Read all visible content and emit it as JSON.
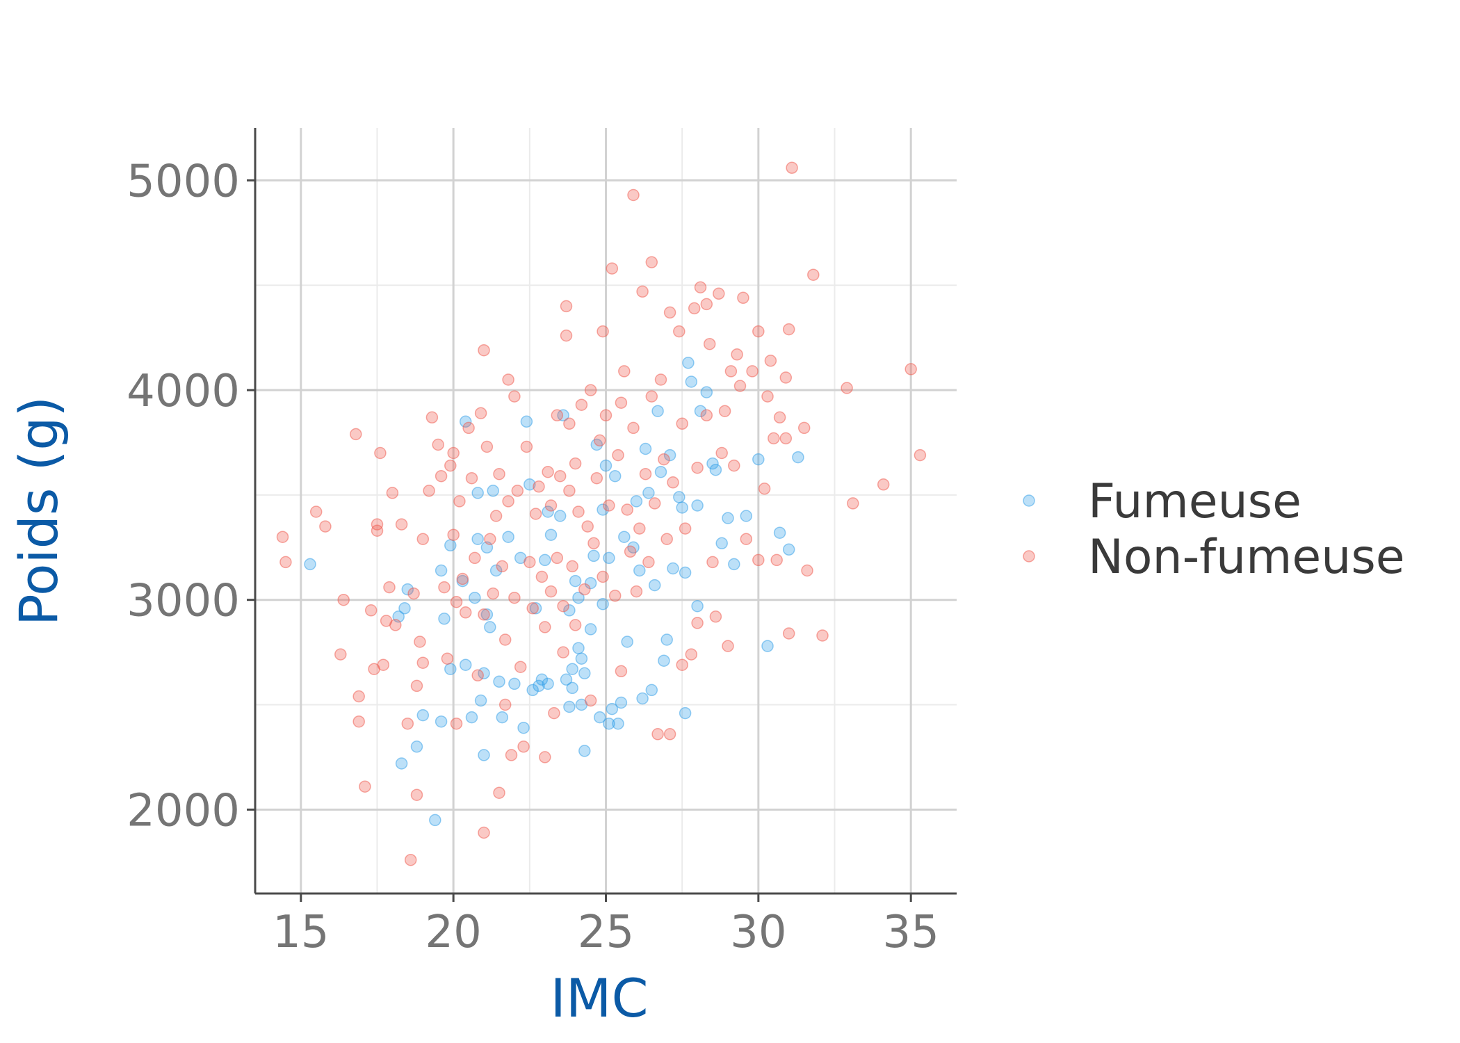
{
  "chart_data": {
    "type": "scatter",
    "xlabel": "IMC",
    "ylabel": "Poids (g)",
    "xlim": [
      13.5,
      36.5
    ],
    "ylim": [
      1600,
      5250
    ],
    "x_ticks": [
      15,
      20,
      25,
      30,
      35
    ],
    "x_minor_ticks": [
      17.5,
      22.5,
      27.5,
      32.5
    ],
    "y_ticks": [
      2000,
      3000,
      4000,
      5000
    ],
    "y_minor_ticks": [
      2500,
      3500,
      4500
    ],
    "grid": true,
    "legend_position": "right",
    "series": [
      {
        "name": "Fumeuse",
        "color": "#2f9ee8",
        "points": [
          [
            15.3,
            3170
          ],
          [
            18.2,
            2920
          ],
          [
            18.5,
            3050
          ],
          [
            18.4,
            2960
          ],
          [
            18.8,
            2300
          ],
          [
            18.3,
            2220
          ],
          [
            19.0,
            2450
          ],
          [
            19.4,
            1950
          ],
          [
            19.6,
            2420
          ],
          [
            19.6,
            3140
          ],
          [
            19.7,
            2910
          ],
          [
            19.9,
            3260
          ],
          [
            19.9,
            2670
          ],
          [
            20.3,
            3090
          ],
          [
            20.4,
            3850
          ],
          [
            20.4,
            2690
          ],
          [
            20.6,
            2440
          ],
          [
            20.7,
            3010
          ],
          [
            20.8,
            3290
          ],
          [
            20.8,
            3510
          ],
          [
            20.9,
            2520
          ],
          [
            21.0,
            2260
          ],
          [
            21.0,
            2650
          ],
          [
            21.1,
            2930
          ],
          [
            21.1,
            3250
          ],
          [
            21.2,
            2870
          ],
          [
            21.3,
            3520
          ],
          [
            21.4,
            3140
          ],
          [
            21.5,
            2610
          ],
          [
            21.6,
            2440
          ],
          [
            21.8,
            3300
          ],
          [
            22.0,
            2600
          ],
          [
            22.2,
            3200
          ],
          [
            22.3,
            2390
          ],
          [
            22.4,
            3850
          ],
          [
            22.5,
            3550
          ],
          [
            22.6,
            2570
          ],
          [
            22.7,
            2960
          ],
          [
            22.8,
            2590
          ],
          [
            22.9,
            2620
          ],
          [
            23.0,
            3190
          ],
          [
            23.1,
            3420
          ],
          [
            23.1,
            2600
          ],
          [
            23.2,
            3310
          ],
          [
            23.5,
            3400
          ],
          [
            23.6,
            3880
          ],
          [
            23.7,
            2620
          ],
          [
            23.8,
            2950
          ],
          [
            23.8,
            2490
          ],
          [
            23.9,
            2580
          ],
          [
            23.9,
            2670
          ],
          [
            24.0,
            3090
          ],
          [
            24.1,
            3010
          ],
          [
            24.1,
            2770
          ],
          [
            24.2,
            2500
          ],
          [
            24.2,
            2720
          ],
          [
            24.3,
            2650
          ],
          [
            24.3,
            2280
          ],
          [
            24.5,
            3080
          ],
          [
            24.5,
            2860
          ],
          [
            24.6,
            3210
          ],
          [
            24.7,
            3740
          ],
          [
            24.8,
            2440
          ],
          [
            24.9,
            3430
          ],
          [
            24.9,
            2980
          ],
          [
            25.0,
            3640
          ],
          [
            25.1,
            3200
          ],
          [
            25.1,
            2410
          ],
          [
            25.2,
            2480
          ],
          [
            25.3,
            3590
          ],
          [
            25.4,
            2410
          ],
          [
            25.5,
            2510
          ],
          [
            25.6,
            3300
          ],
          [
            25.7,
            2800
          ],
          [
            25.9,
            3250
          ],
          [
            26.0,
            3470
          ],
          [
            26.1,
            3140
          ],
          [
            26.2,
            2530
          ],
          [
            26.3,
            3720
          ],
          [
            26.4,
            3510
          ],
          [
            26.5,
            2570
          ],
          [
            26.6,
            3070
          ],
          [
            26.7,
            3900
          ],
          [
            26.8,
            3610
          ],
          [
            26.9,
            2710
          ],
          [
            27.0,
            2810
          ],
          [
            27.1,
            3690
          ],
          [
            27.2,
            3150
          ],
          [
            27.4,
            3490
          ],
          [
            27.5,
            3440
          ],
          [
            27.6,
            2460
          ],
          [
            27.6,
            3130
          ],
          [
            27.7,
            4130
          ],
          [
            27.8,
            4040
          ],
          [
            28.0,
            3450
          ],
          [
            28.0,
            2970
          ],
          [
            28.1,
            3900
          ],
          [
            28.3,
            3990
          ],
          [
            28.5,
            3650
          ],
          [
            28.6,
            3620
          ],
          [
            28.8,
            3270
          ],
          [
            29.0,
            3390
          ],
          [
            29.2,
            3170
          ],
          [
            29.6,
            3400
          ],
          [
            30.0,
            3670
          ],
          [
            30.3,
            2780
          ],
          [
            30.7,
            3320
          ],
          [
            31.0,
            3240
          ],
          [
            31.3,
            3680
          ]
        ]
      },
      {
        "name": "Non-fumeuse",
        "color": "#f0584c",
        "points": [
          [
            14.4,
            3300
          ],
          [
            14.5,
            3180
          ],
          [
            15.5,
            3420
          ],
          [
            15.8,
            3350
          ],
          [
            16.3,
            2740
          ],
          [
            16.4,
            3000
          ],
          [
            16.8,
            3790
          ],
          [
            16.9,
            2540
          ],
          [
            16.9,
            2420
          ],
          [
            17.1,
            2110
          ],
          [
            17.3,
            2950
          ],
          [
            17.4,
            2670
          ],
          [
            17.5,
            3330
          ],
          [
            17.5,
            3360
          ],
          [
            17.6,
            3700
          ],
          [
            17.7,
            2690
          ],
          [
            17.8,
            2900
          ],
          [
            17.9,
            3060
          ],
          [
            18.0,
            3510
          ],
          [
            18.1,
            2880
          ],
          [
            18.3,
            3360
          ],
          [
            18.5,
            2410
          ],
          [
            18.6,
            1760
          ],
          [
            18.7,
            3030
          ],
          [
            18.8,
            2070
          ],
          [
            18.8,
            2590
          ],
          [
            18.9,
            2800
          ],
          [
            19.0,
            2700
          ],
          [
            19.0,
            3290
          ],
          [
            19.2,
            3520
          ],
          [
            19.3,
            3870
          ],
          [
            19.5,
            3740
          ],
          [
            19.6,
            3590
          ],
          [
            19.7,
            3060
          ],
          [
            19.8,
            2720
          ],
          [
            19.9,
            3640
          ],
          [
            20.0,
            3310
          ],
          [
            20.0,
            3700
          ],
          [
            20.1,
            2990
          ],
          [
            20.1,
            2410
          ],
          [
            20.2,
            3470
          ],
          [
            20.3,
            3100
          ],
          [
            20.4,
            2940
          ],
          [
            20.5,
            3820
          ],
          [
            20.6,
            3580
          ],
          [
            20.7,
            3200
          ],
          [
            20.8,
            2640
          ],
          [
            20.9,
            3890
          ],
          [
            21.0,
            4190
          ],
          [
            21.0,
            2930
          ],
          [
            21.0,
            1890
          ],
          [
            21.1,
            3730
          ],
          [
            21.2,
            3290
          ],
          [
            21.3,
            3030
          ],
          [
            21.4,
            3400
          ],
          [
            21.5,
            2080
          ],
          [
            21.5,
            3600
          ],
          [
            21.6,
            3160
          ],
          [
            21.7,
            2500
          ],
          [
            21.7,
            2810
          ],
          [
            21.8,
            4050
          ],
          [
            21.8,
            3470
          ],
          [
            21.9,
            2260
          ],
          [
            22.0,
            3970
          ],
          [
            22.0,
            3010
          ],
          [
            22.1,
            3520
          ],
          [
            22.2,
            2680
          ],
          [
            22.3,
            2300
          ],
          [
            22.4,
            3730
          ],
          [
            22.5,
            3180
          ],
          [
            22.6,
            2960
          ],
          [
            22.7,
            3410
          ],
          [
            22.8,
            3540
          ],
          [
            22.9,
            3110
          ],
          [
            23.0,
            2250
          ],
          [
            23.0,
            2870
          ],
          [
            23.1,
            3610
          ],
          [
            23.2,
            3450
          ],
          [
            23.2,
            3040
          ],
          [
            23.3,
            2460
          ],
          [
            23.4,
            3880
          ],
          [
            23.4,
            3200
          ],
          [
            23.5,
            3590
          ],
          [
            23.6,
            2970
          ],
          [
            23.6,
            2750
          ],
          [
            23.7,
            4400
          ],
          [
            23.7,
            4260
          ],
          [
            23.8,
            3840
          ],
          [
            23.8,
            3520
          ],
          [
            23.9,
            3160
          ],
          [
            24.0,
            3650
          ],
          [
            24.0,
            2880
          ],
          [
            24.1,
            3420
          ],
          [
            24.2,
            3930
          ],
          [
            24.3,
            3050
          ],
          [
            24.4,
            3350
          ],
          [
            24.5,
            4000
          ],
          [
            24.5,
            2520
          ],
          [
            24.6,
            3270
          ],
          [
            24.7,
            3580
          ],
          [
            24.8,
            3760
          ],
          [
            24.9,
            4280
          ],
          [
            24.9,
            3110
          ],
          [
            25.0,
            3880
          ],
          [
            25.1,
            3450
          ],
          [
            25.2,
            4580
          ],
          [
            25.3,
            3020
          ],
          [
            25.4,
            3690
          ],
          [
            25.5,
            3940
          ],
          [
            25.5,
            2660
          ],
          [
            25.6,
            4090
          ],
          [
            25.7,
            3430
          ],
          [
            25.8,
            3230
          ],
          [
            25.9,
            4930
          ],
          [
            25.9,
            3820
          ],
          [
            26.0,
            3040
          ],
          [
            26.1,
            3340
          ],
          [
            26.2,
            4470
          ],
          [
            26.3,
            3600
          ],
          [
            26.4,
            3180
          ],
          [
            26.5,
            4610
          ],
          [
            26.5,
            3970
          ],
          [
            26.6,
            3460
          ],
          [
            26.7,
            2360
          ],
          [
            26.8,
            4050
          ],
          [
            26.9,
            3670
          ],
          [
            27.0,
            3290
          ],
          [
            27.1,
            4370
          ],
          [
            27.1,
            2360
          ],
          [
            27.2,
            3560
          ],
          [
            27.4,
            4280
          ],
          [
            27.5,
            3840
          ],
          [
            27.5,
            2690
          ],
          [
            27.6,
            3340
          ],
          [
            27.8,
            2740
          ],
          [
            27.9,
            4390
          ],
          [
            28.0,
            3630
          ],
          [
            28.0,
            2890
          ],
          [
            28.1,
            4490
          ],
          [
            28.3,
            4410
          ],
          [
            28.3,
            3880
          ],
          [
            28.4,
            4220
          ],
          [
            28.5,
            3180
          ],
          [
            28.6,
            2920
          ],
          [
            28.7,
            4460
          ],
          [
            28.8,
            3700
          ],
          [
            28.9,
            3900
          ],
          [
            29.0,
            2780
          ],
          [
            29.1,
            4090
          ],
          [
            29.2,
            3640
          ],
          [
            29.3,
            4170
          ],
          [
            29.4,
            4020
          ],
          [
            29.5,
            4440
          ],
          [
            29.6,
            3290
          ],
          [
            29.8,
            4090
          ],
          [
            30.0,
            4280
          ],
          [
            30.0,
            3190
          ],
          [
            30.2,
            3530
          ],
          [
            30.3,
            3970
          ],
          [
            30.4,
            4140
          ],
          [
            30.5,
            3770
          ],
          [
            30.6,
            3190
          ],
          [
            30.7,
            3870
          ],
          [
            30.9,
            4060
          ],
          [
            30.9,
            3770
          ],
          [
            31.0,
            4290
          ],
          [
            31.0,
            2840
          ],
          [
            31.1,
            5060
          ],
          [
            31.5,
            3820
          ],
          [
            31.6,
            3140
          ],
          [
            31.8,
            4550
          ],
          [
            32.1,
            2830
          ],
          [
            32.9,
            4010
          ],
          [
            33.1,
            3460
          ],
          [
            34.1,
            3550
          ],
          [
            35.0,
            4100
          ],
          [
            35.3,
            3690
          ]
        ]
      }
    ]
  }
}
